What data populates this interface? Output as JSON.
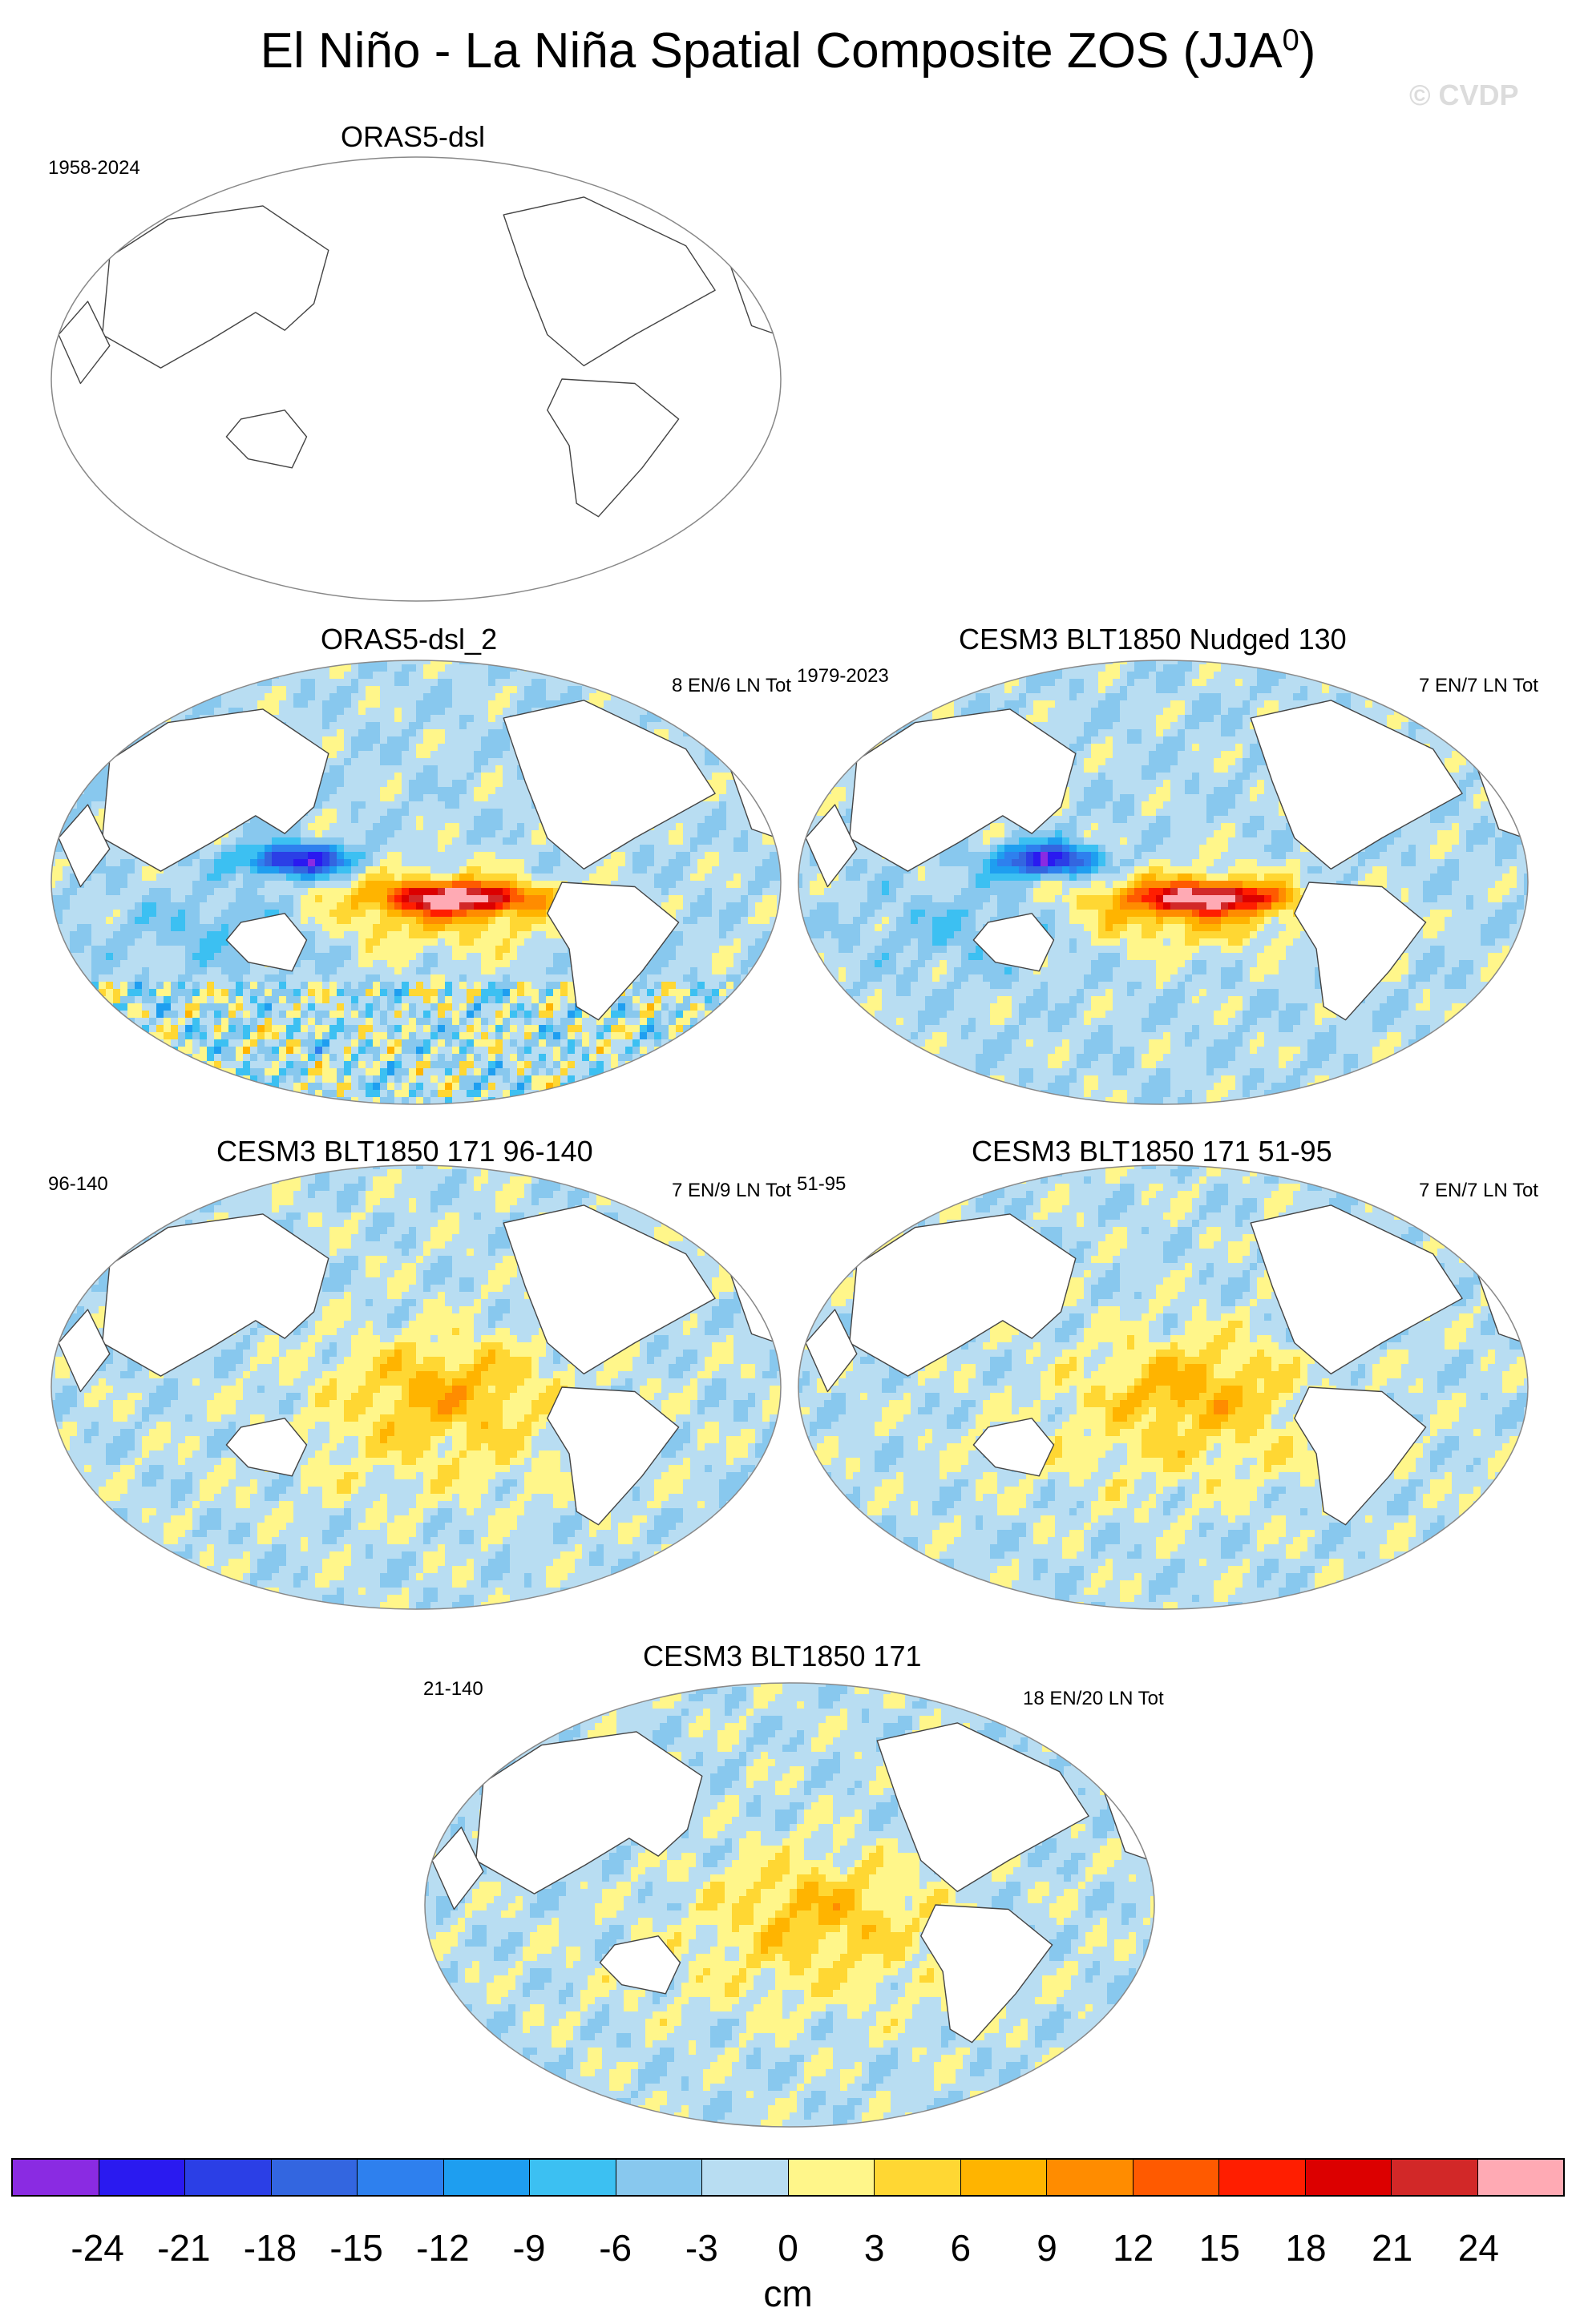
{
  "title": "El Niño - La Niña Spatial Composite ZOS (JJA",
  "title_superscript": "0",
  "title_close": ")",
  "copyright": "© CVDP",
  "panels": [
    {
      "title": "ORAS5-dsl",
      "left": "1958-2024",
      "right": "",
      "field": "none"
    },
    {
      "title": "ORAS5-dsl_2",
      "left": "",
      "right": "8 EN/6 LN Tot",
      "field": "obs"
    },
    {
      "title": "CESM3 BLT1850 Nudged 130",
      "left": "1979-2023",
      "right": "7 EN/7 LN Tot",
      "field": "nudged"
    },
    {
      "title": "CESM3 BLT1850 171 96-140",
      "left": "96-140",
      "right": "7 EN/9 LN Tot",
      "field": "model"
    },
    {
      "title": "CESM3 BLT1850 171 51-95",
      "left": "51-95",
      "right": "7 EN/7 LN Tot",
      "field": "model"
    },
    {
      "title": "CESM3 BLT1850 171",
      "left": "21-140",
      "right": "18 EN/20 LN Tot",
      "field": "model_weak"
    }
  ],
  "colorbar": {
    "units": "cm",
    "ticks": [
      "-24",
      "-21",
      "-18",
      "-15",
      "-12",
      "-9",
      "-6",
      "-3",
      "0",
      "3",
      "6",
      "9",
      "12",
      "15",
      "18",
      "21",
      "24"
    ],
    "colors": [
      "#8a2be2",
      "#2a1af0",
      "#2b3fe6",
      "#3366e0",
      "#2e80ee",
      "#1e9ef0",
      "#3cc0f2",
      "#88c8ee",
      "#b8ddf2",
      "#fff68a",
      "#ffd733",
      "#ffb400",
      "#ff8c00",
      "#ff5a00",
      "#ff1e00",
      "#dc0000",
      "#d22828",
      "#ffaab4"
    ]
  }
}
